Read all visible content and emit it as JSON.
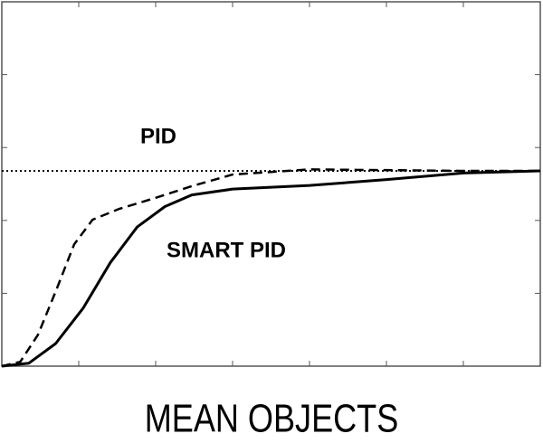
{
  "chart_data": {
    "type": "line",
    "xlabel": "MEAN OBJECTS",
    "xlim": [
      0,
      7
    ],
    "ylim": [
      0,
      5
    ],
    "reference": {
      "value": 2.68,
      "color": "#000000",
      "style": "dotted"
    },
    "series": [
      {
        "name": "PID",
        "color": "#000000",
        "style": "dashed",
        "x": [
          0,
          0.24,
          0.47,
          0.71,
          0.94,
          1.18,
          1.53,
          2,
          2.47,
          3,
          4,
          5,
          6,
          7
        ],
        "values": [
          0,
          0.06,
          0.43,
          1.05,
          1.67,
          2.01,
          2.16,
          2.31,
          2.47,
          2.63,
          2.7,
          2.69,
          2.68,
          2.68
        ]
      },
      {
        "name": "SMART PID",
        "color": "#000000",
        "style": "solid",
        "x": [
          0,
          0.35,
          0.7,
          1.06,
          1.41,
          1.76,
          2.12,
          2.47,
          3,
          4,
          5,
          6,
          7
        ],
        "values": [
          0,
          0.04,
          0.31,
          0.8,
          1.42,
          1.91,
          2.19,
          2.35,
          2.43,
          2.48,
          2.56,
          2.65,
          2.68
        ]
      }
    ]
  }
}
